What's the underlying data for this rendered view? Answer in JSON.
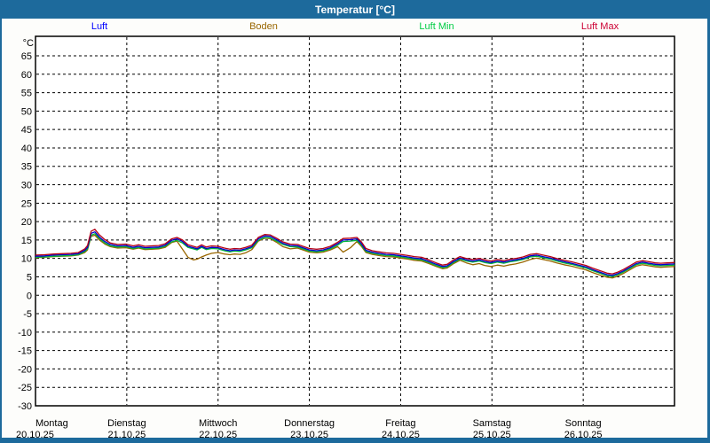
{
  "window": {
    "title": "Temperatur [°C]"
  },
  "colors": {
    "frame_blue": "#1D6A9C",
    "plot_background": "#FFFFFF",
    "grid": "#000000"
  },
  "legend": [
    {
      "label": "Luft",
      "color": "#0000FF"
    },
    {
      "label": "Boden",
      "color": "#996600"
    },
    {
      "label": "Luft Min",
      "color": "#00CC44"
    },
    {
      "label": "Luft Max",
      "color": "#CC0033"
    }
  ],
  "chart_data": {
    "type": "line",
    "title": "Temperatur [°C]",
    "ylabel": "°C",
    "ylim": [
      -30,
      70
    ],
    "yticks": [
      65,
      60,
      55,
      50,
      45,
      40,
      35,
      30,
      25,
      20,
      15,
      10,
      5,
      0,
      -5,
      -10,
      -15,
      -20,
      -25,
      -30
    ],
    "grid": "dashed",
    "legend_position": "top",
    "x_days": [
      {
        "day": "Montag",
        "date": "20.10.25"
      },
      {
        "day": "Dienstag",
        "date": "21.10.25"
      },
      {
        "day": "Mittwoch",
        "date": "22.10.25"
      },
      {
        "day": "Donnerstag",
        "date": "23.10.25"
      },
      {
        "day": "Freitag",
        "date": "24.10.25"
      },
      {
        "day": "Samstag",
        "date": "25.10.25"
      },
      {
        "day": "Sonntag",
        "date": "26.10.25"
      }
    ],
    "t_days": [
      0,
      0.1,
      0.2,
      0.29,
      0.39,
      0.47,
      0.54,
      0.57,
      0.61,
      0.65,
      0.7,
      0.76,
      0.82,
      0.9,
      0.99,
      1.07,
      1.13,
      1.2,
      1.27,
      1.35,
      1.42,
      1.49,
      1.55,
      1.61,
      1.67,
      1.73,
      1.77,
      1.82,
      1.87,
      1.93,
      2.0,
      2.07,
      2.13,
      2.18,
      2.24,
      2.3,
      2.37,
      2.44,
      2.51,
      2.57,
      2.64,
      2.71,
      2.79,
      2.87,
      2.93,
      3.0,
      3.08,
      3.15,
      3.23,
      3.31,
      3.37,
      3.45,
      3.52,
      3.57,
      3.62,
      3.69,
      3.76,
      3.84,
      3.92,
      4.0,
      4.08,
      4.15,
      4.23,
      4.31,
      4.39,
      4.46,
      4.51,
      4.58,
      4.65,
      4.72,
      4.79,
      4.86,
      4.92,
      4.99,
      5.06,
      5.13,
      5.2,
      5.26,
      5.34,
      5.42,
      5.49,
      5.56,
      5.64,
      5.71,
      5.79,
      5.87,
      5.95,
      6.03,
      6.1,
      6.18,
      6.26,
      6.32,
      6.38,
      6.44,
      6.51,
      6.58,
      6.65,
      6.72,
      6.79,
      6.85,
      6.92,
      7.0
    ],
    "series": [
      {
        "name": "Luft",
        "color": "#0000CC",
        "values": [
          10.6,
          10.7,
          10.9,
          11.0,
          11.1,
          11.3,
          12.2,
          13.0,
          16.8,
          17.2,
          15.8,
          14.6,
          13.8,
          13.4,
          13.5,
          13.0,
          13.3,
          12.9,
          13.0,
          13.1,
          13.6,
          14.9,
          15.3,
          14.6,
          13.3,
          12.9,
          12.6,
          13.3,
          12.7,
          13.0,
          12.9,
          12.4,
          12.1,
          12.3,
          12.2,
          12.6,
          13.2,
          15.3,
          16.1,
          16.0,
          15.1,
          14.1,
          13.5,
          13.4,
          12.9,
          12.3,
          12.1,
          12.3,
          12.9,
          14.0,
          15.0,
          15.1,
          15.3,
          14.0,
          12.2,
          11.7,
          11.4,
          11.1,
          11.0,
          10.7,
          10.4,
          10.1,
          9.9,
          9.2,
          8.4,
          7.8,
          8.0,
          9.2,
          10.1,
          9.6,
          9.3,
          9.6,
          9.2,
          8.9,
          9.3,
          9.0,
          9.4,
          9.6,
          10.0,
          10.7,
          10.9,
          10.5,
          10.1,
          9.6,
          9.1,
          8.7,
          8.2,
          7.7,
          7.0,
          6.3,
          5.6,
          5.4,
          5.9,
          6.6,
          7.6,
          8.6,
          9.0,
          8.7,
          8.4,
          8.3,
          8.4,
          8.5
        ]
      },
      {
        "name": "Boden",
        "color": "#996600",
        "values": [
          10.2,
          10.3,
          10.5,
          10.6,
          10.7,
          10.9,
          11.6,
          12.3,
          16.0,
          16.3,
          15.0,
          13.9,
          13.2,
          12.8,
          12.9,
          12.5,
          12.8,
          12.4,
          12.5,
          12.6,
          13.0,
          14.3,
          14.7,
          12.5,
          10.3,
          9.6,
          9.8,
          10.4,
          10.9,
          11.4,
          11.6,
          11.2,
          11.0,
          11.2,
          11.1,
          11.5,
          12.4,
          14.7,
          15.5,
          15.4,
          14.4,
          13.2,
          12.6,
          12.8,
          12.3,
          11.7,
          11.5,
          11.7,
          12.3,
          13.2,
          11.7,
          12.9,
          14.6,
          13.3,
          11.6,
          11.1,
          10.8,
          10.5,
          10.4,
          10.1,
          9.8,
          9.5,
          9.3,
          8.6,
          7.8,
          7.2,
          7.4,
          8.6,
          9.5,
          8.8,
          8.3,
          8.6,
          8.1,
          7.8,
          8.2,
          7.9,
          8.3,
          8.5,
          9.0,
          9.7,
          10.1,
          9.7,
          9.3,
          8.8,
          8.3,
          7.9,
          7.4,
          6.9,
          6.2,
          5.5,
          4.9,
          4.7,
          5.2,
          5.9,
          6.9,
          7.9,
          8.3,
          8.0,
          7.7,
          7.6,
          7.7,
          7.8
        ]
      },
      {
        "name": "Luft Min",
        "color": "#00B43C",
        "values": [
          10.3,
          10.4,
          10.6,
          10.7,
          10.8,
          11.0,
          11.9,
          12.6,
          16.3,
          16.7,
          15.4,
          14.2,
          13.4,
          13.1,
          13.2,
          12.7,
          13.0,
          12.6,
          12.7,
          12.8,
          13.3,
          14.5,
          14.9,
          14.2,
          13.0,
          12.6,
          12.3,
          13.0,
          12.4,
          12.7,
          12.6,
          12.1,
          11.8,
          12.0,
          11.9,
          12.3,
          12.9,
          14.9,
          15.7,
          15.6,
          14.7,
          13.8,
          13.2,
          13.1,
          12.6,
          12.0,
          11.8,
          12.0,
          12.6,
          13.6,
          14.6,
          14.7,
          14.9,
          13.6,
          11.9,
          11.4,
          11.1,
          10.8,
          10.7,
          10.4,
          10.1,
          9.8,
          9.6,
          8.9,
          8.1,
          7.5,
          7.7,
          8.9,
          9.8,
          9.3,
          9.0,
          9.3,
          8.9,
          8.6,
          9.0,
          8.7,
          9.1,
          9.3,
          9.7,
          10.4,
          10.6,
          10.2,
          9.8,
          9.3,
          8.8,
          8.4,
          7.9,
          7.4,
          6.7,
          6.0,
          5.3,
          5.1,
          5.6,
          6.3,
          7.3,
          8.3,
          8.7,
          8.4,
          8.1,
          8.0,
          8.1,
          8.2
        ]
      },
      {
        "name": "Luft Max",
        "color": "#B40014",
        "values": [
          10.9,
          11.0,
          11.2,
          11.3,
          11.4,
          11.6,
          12.6,
          13.5,
          17.4,
          17.9,
          16.4,
          15.1,
          14.2,
          13.8,
          13.9,
          13.4,
          13.7,
          13.3,
          13.4,
          13.5,
          14.0,
          15.3,
          15.7,
          15.0,
          13.7,
          13.3,
          13.0,
          13.7,
          13.1,
          13.4,
          13.3,
          12.8,
          12.5,
          12.7,
          12.6,
          13.0,
          13.6,
          15.7,
          16.5,
          16.4,
          15.5,
          14.5,
          13.9,
          13.8,
          13.3,
          12.7,
          12.5,
          12.7,
          13.3,
          14.4,
          15.4,
          15.5,
          15.7,
          14.5,
          12.7,
          12.1,
          11.8,
          11.5,
          11.4,
          11.1,
          10.8,
          10.5,
          10.3,
          9.6,
          8.8,
          8.2,
          8.4,
          9.6,
          10.5,
          10.0,
          9.7,
          10.0,
          9.6,
          9.3,
          9.7,
          9.4,
          9.8,
          10.0,
          10.4,
          11.1,
          11.3,
          10.9,
          10.5,
          10.0,
          9.5,
          9.1,
          8.6,
          8.1,
          7.4,
          6.7,
          6.0,
          5.8,
          6.3,
          7.0,
          8.0,
          9.0,
          9.4,
          9.1,
          8.8,
          8.7,
          8.8,
          8.9
        ]
      }
    ]
  }
}
